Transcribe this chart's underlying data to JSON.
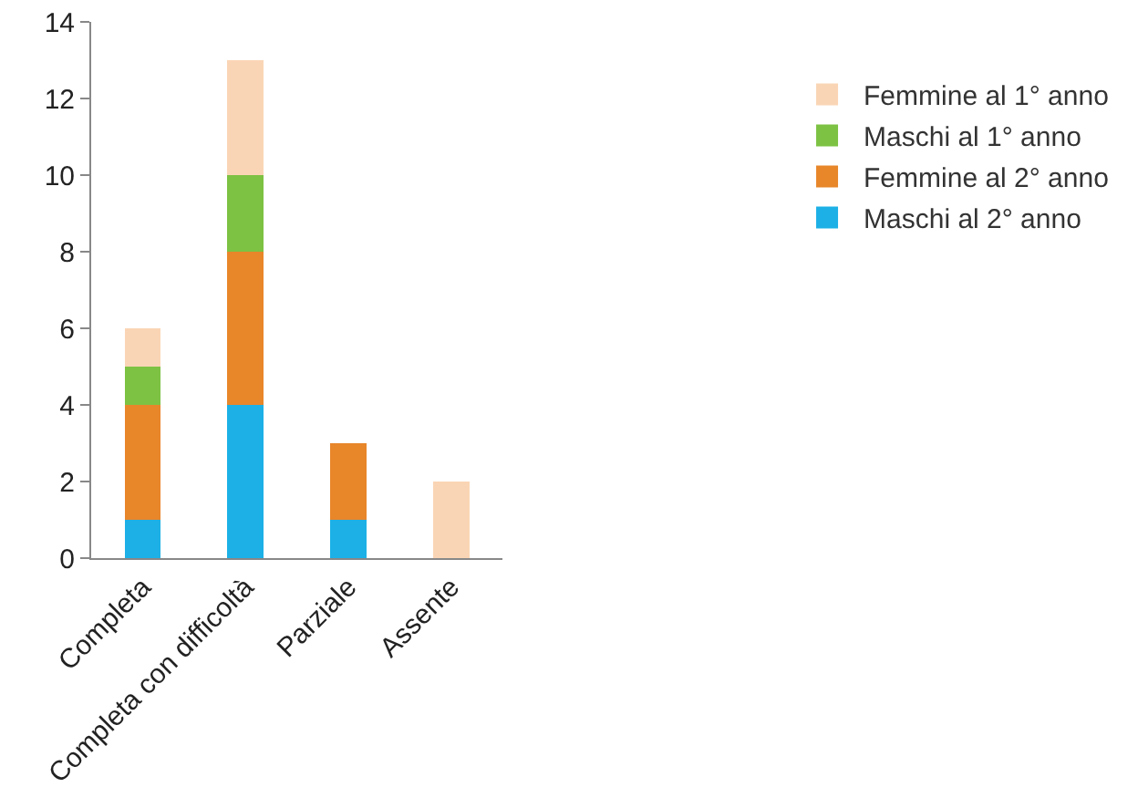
{
  "chart_data": {
    "type": "bar",
    "stacked": true,
    "categories": [
      "Completa",
      "Completa con difficoltà",
      "Parziale",
      "Assente"
    ],
    "series": [
      {
        "name": "Maschi al 2° anno",
        "color": "#1cb0e6",
        "values": [
          1,
          4,
          1,
          null
        ]
      },
      {
        "name": "Femmine al 2° anno",
        "color": "#e8862a",
        "values": [
          3,
          4,
          2,
          null
        ]
      },
      {
        "name": "Maschi al 1° anno",
        "color": "#7dc243",
        "values": [
          1,
          2,
          null,
          null
        ]
      },
      {
        "name": "Femmine al 1° anno",
        "color": "#fad5b5",
        "values": [
          1,
          3,
          null,
          2
        ]
      }
    ],
    "ylim": [
      0,
      14
    ],
    "yticks": [
      0,
      2,
      4,
      6,
      8,
      10,
      12,
      14
    ],
    "grid": false,
    "legend": "right"
  }
}
